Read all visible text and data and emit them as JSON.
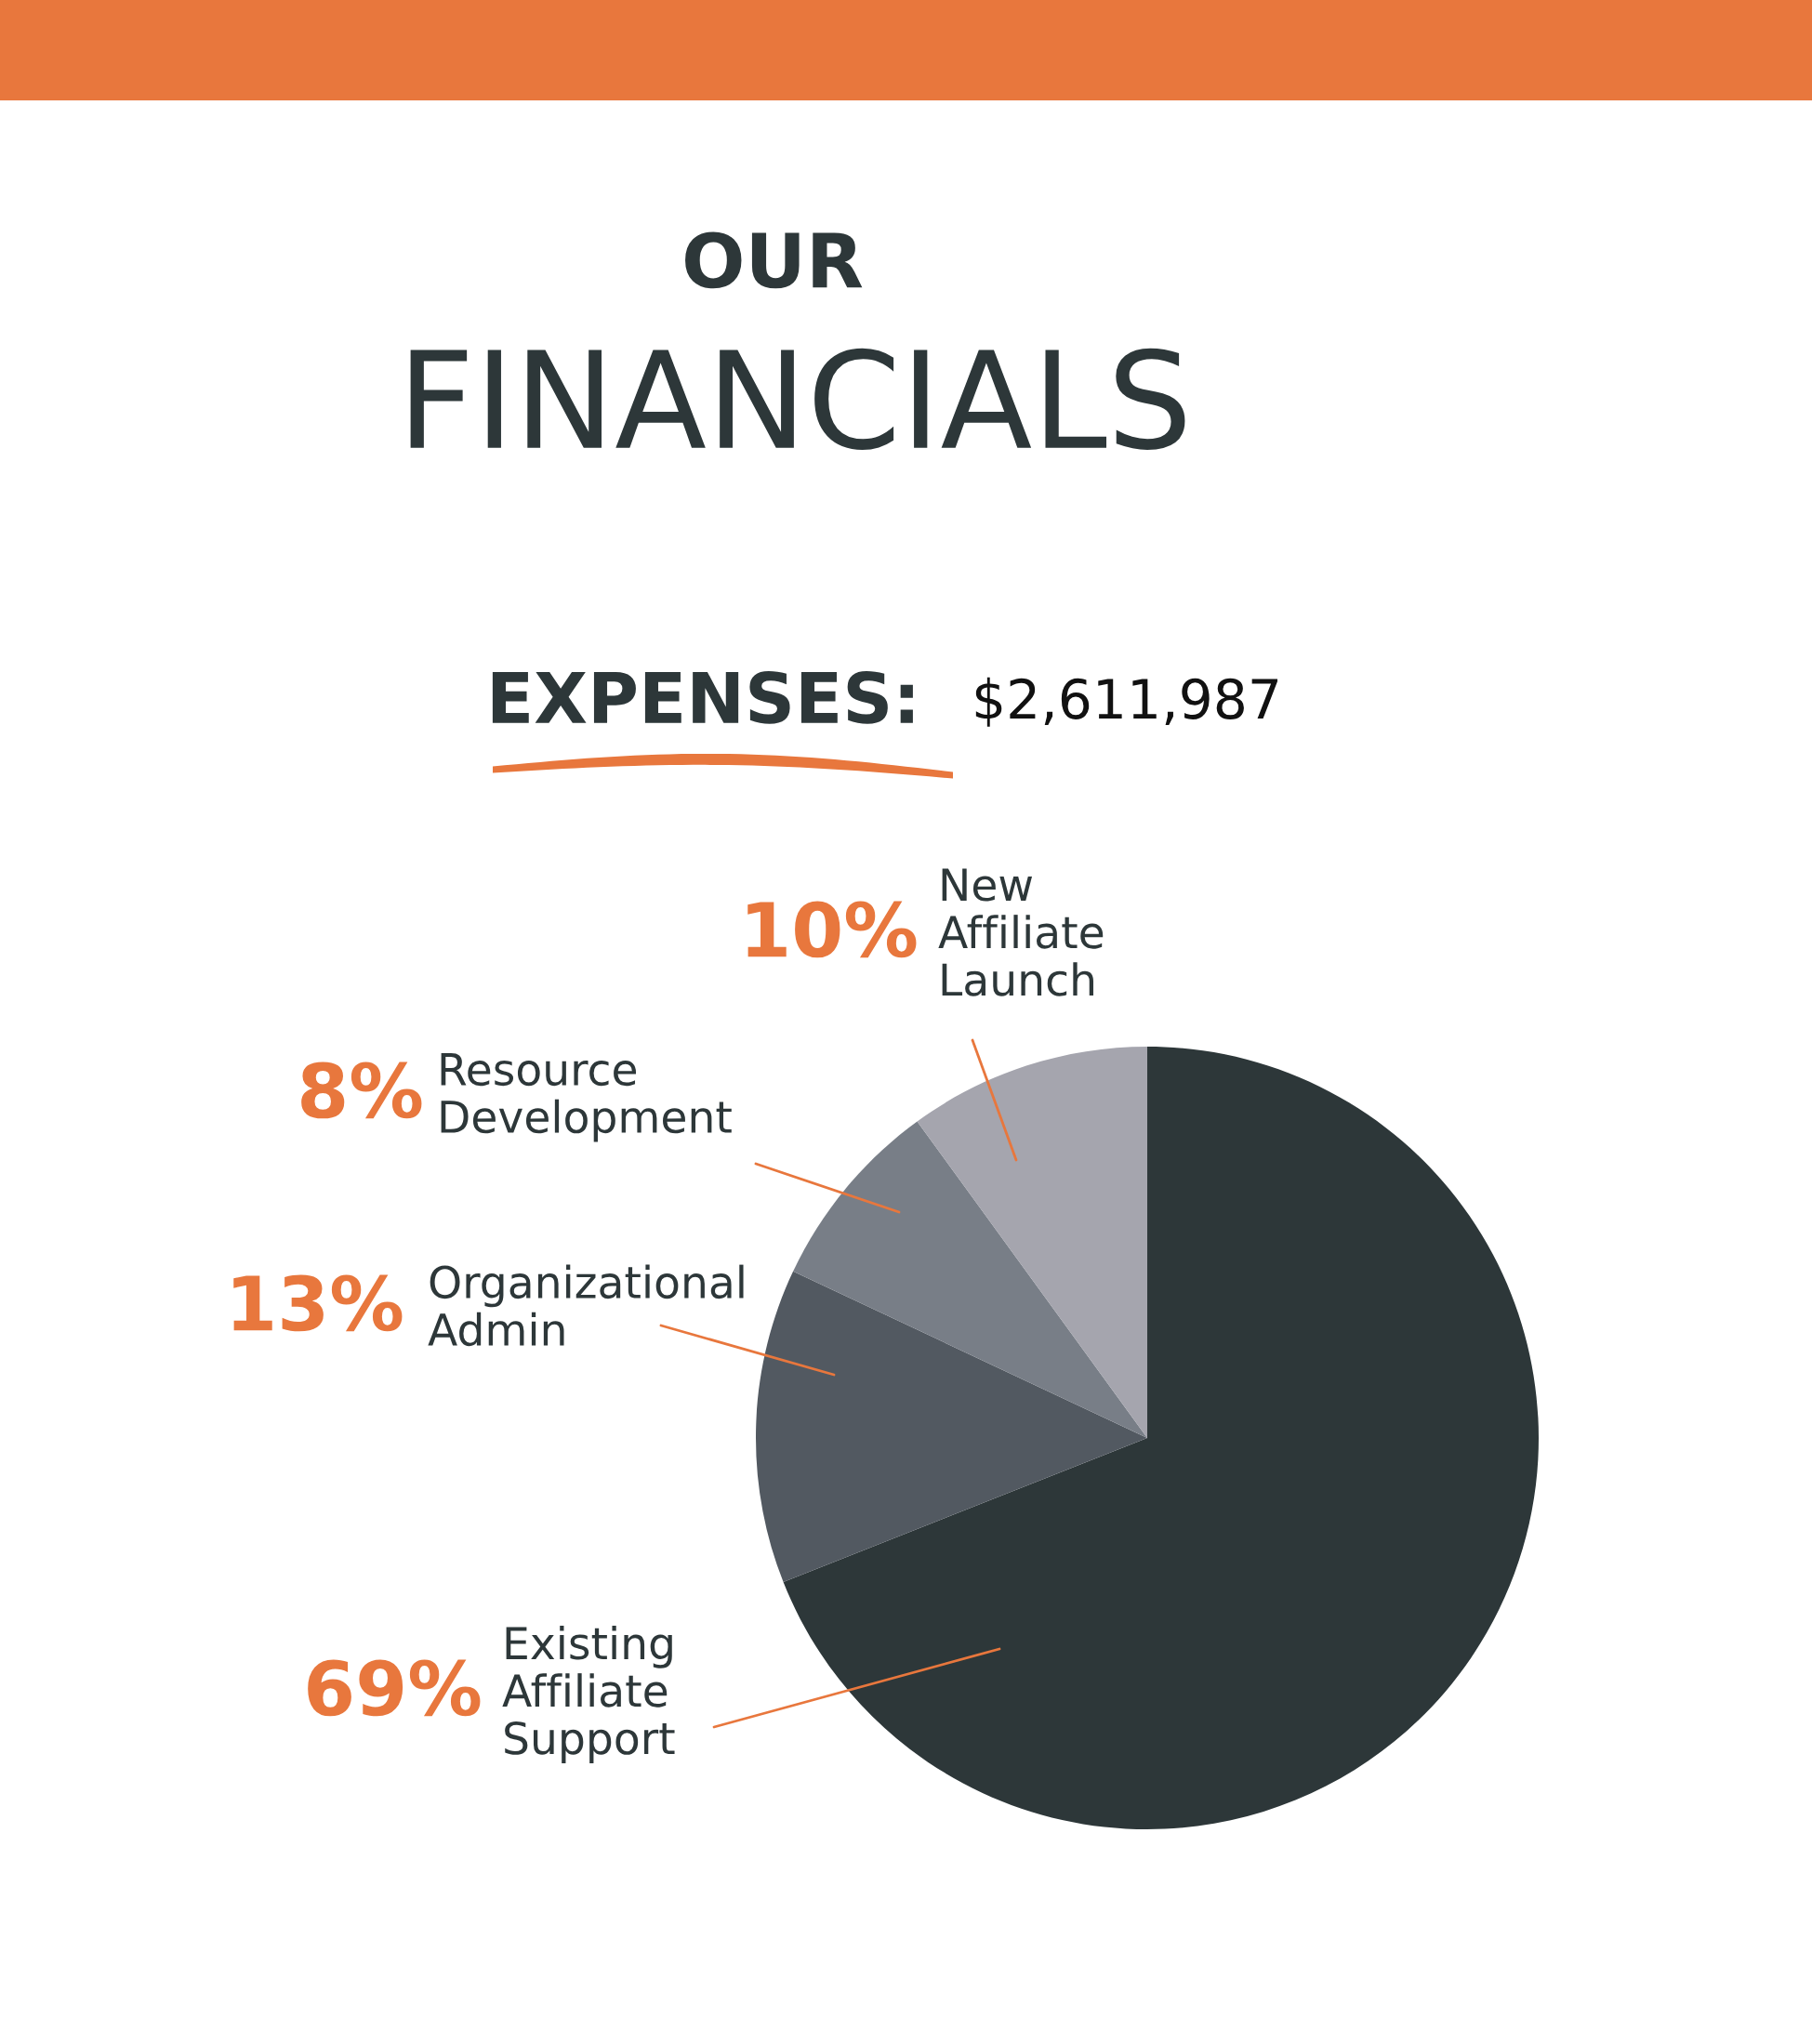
{
  "chart_data": {
    "type": "pie",
    "title": "OUR FINANCIALS",
    "subtitle": "EXPENSES: $2,611,987",
    "categories": [
      "Existing Affiliate Support",
      "Organizational Admin",
      "Resource Development",
      "New Affiliate Launch"
    ],
    "values": [
      69,
      13,
      8,
      10
    ],
    "value_labels": [
      "69%",
      "13%",
      "8%",
      "10%"
    ],
    "colors": [
      "#2d3739",
      "#525961",
      "#787e87",
      "#a5a5ae"
    ]
  }
}
